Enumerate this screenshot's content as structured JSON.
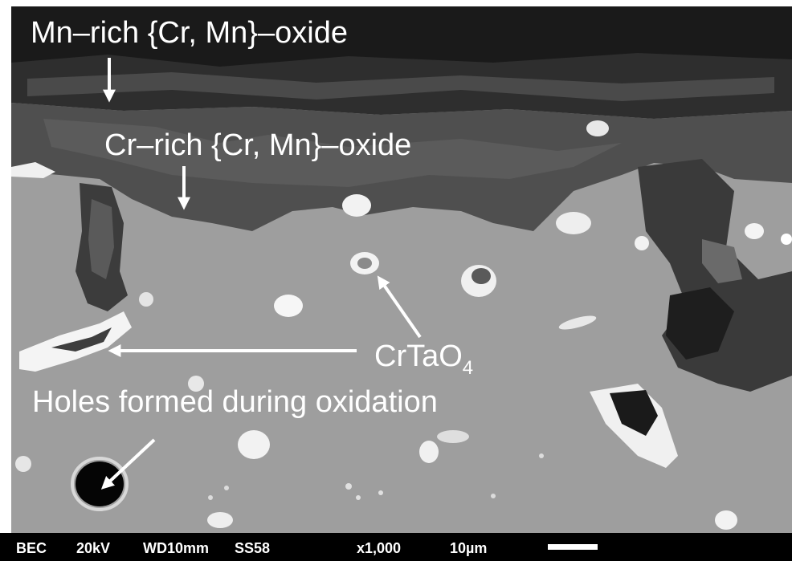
{
  "annotations": {
    "mn_rich_oxide": "Mn–rich {Cr, Mn}–oxide",
    "cr_rich_oxide": "Cr–rich {Cr, Mn}–oxide",
    "crtao4_base": "CrTaO",
    "crtao4_sub": "4",
    "holes": "Holes formed during oxidation"
  },
  "sem_databar": {
    "mode": "BEC",
    "voltage": "20kV",
    "working_distance": "WD10mm",
    "spot_size": "SS58",
    "magnification": "x1,000",
    "scale_label": "10µm"
  },
  "colors": {
    "annotation": "#ffffff",
    "databar_bg": "#000000",
    "matrix_gray": "#9c9c9c",
    "oxide_dark": "#3a3a3a",
    "crtao4_bright": "#f2f2f2"
  }
}
